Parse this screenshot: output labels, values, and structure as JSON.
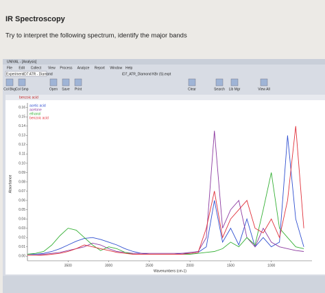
{
  "page": {
    "title": "IR Spectroscopy",
    "instruction": "Try to interpret the following spectrum, identify the major bands"
  },
  "window": {
    "title": "UNIVAL - [Analysis]",
    "menu": [
      "File",
      "Edit",
      "Collect",
      "View",
      "Process",
      "Analyze",
      "Report",
      "Window",
      "Help"
    ],
    "experiment_label": "Experiment",
    "experiment": "iD7 ATR - Diamond",
    "document_title": "iD7_ATR_Diamond KBr (S).expt",
    "toolbar": [
      "Col Bkg",
      "Col Smp",
      "Open",
      "Save",
      "Print",
      "Clear",
      "Search",
      "Lib Mgr",
      "View All"
    ],
    "selected_spectrum": "benzoic acid"
  },
  "chart_data": {
    "type": "line",
    "xlabel": "Wavenumbers (cm-1)",
    "ylabel": "Absorbance",
    "x": [
      4000,
      3900,
      3800,
      3700,
      3600,
      3500,
      3400,
      3300,
      3200,
      3100,
      3000,
      2900,
      2800,
      2700,
      2600,
      2500,
      2400,
      2300,
      2200,
      2100,
      2000,
      1900,
      1800,
      1700,
      1600,
      1500,
      1400,
      1300,
      1200,
      1100,
      1000,
      900,
      800,
      700,
      600
    ],
    "xlim": [
      4000,
      500
    ],
    "xticks": [
      3500,
      3000,
      2500,
      2000,
      1500,
      1000
    ],
    "ylim": [
      -0.005,
      0.165
    ],
    "yticks": [
      {
        "value": 0,
        "label": "0.00"
      },
      0.01,
      0.02,
      0.03,
      0.04,
      0.05,
      0.06,
      0.07,
      0.08,
      0.09,
      {
        "value": 0.1,
        "label": "0.10"
      },
      0.11,
      0.12,
      0.13,
      0.14,
      0.15,
      0.16
    ],
    "series": [
      {
        "name": "acetic acid",
        "color": "#2f4fd0",
        "values": [
          0.002,
          0.002,
          0.003,
          0.005,
          0.008,
          0.012,
          0.016,
          0.019,
          0.02,
          0.018,
          0.015,
          0.012,
          0.008,
          0.005,
          0.003,
          0.002,
          0.002,
          0.002,
          0.002,
          0.003,
          0.003,
          0.004,
          0.01,
          0.06,
          0.015,
          0.03,
          0.012,
          0.04,
          0.01,
          0.02,
          0.01,
          0.015,
          0.13,
          0.04,
          0.01
        ]
      },
      {
        "name": "acetone",
        "color": "#8c3aa0",
        "values": [
          0.001,
          0.001,
          0.002,
          0.003,
          0.004,
          0.006,
          0.008,
          0.01,
          0.014,
          0.012,
          0.008,
          0.005,
          0.004,
          0.003,
          0.003,
          0.003,
          0.003,
          0.003,
          0.003,
          0.003,
          0.004,
          0.005,
          0.02,
          0.135,
          0.03,
          0.05,
          0.06,
          0.02,
          0.01,
          0.03,
          0.015,
          0.01,
          0.008,
          0.006,
          0.005
        ]
      },
      {
        "name": "ethanol",
        "color": "#35b035",
        "values": [
          0.002,
          0.003,
          0.005,
          0.012,
          0.022,
          0.03,
          0.028,
          0.02,
          0.012,
          0.006,
          0.01,
          0.008,
          0.004,
          0.002,
          0.002,
          0.002,
          0.002,
          0.002,
          0.002,
          0.002,
          0.002,
          0.003,
          0.004,
          0.005,
          0.008,
          0.015,
          0.01,
          0.02,
          0.012,
          0.05,
          0.09,
          0.03,
          0.02,
          0.01,
          0.008
        ]
      },
      {
        "name": "benzoic acid",
        "color": "#e0303a",
        "values": [
          0.001,
          0.001,
          0.001,
          0.002,
          0.003,
          0.005,
          0.008,
          0.012,
          0.01,
          0.008,
          0.006,
          0.004,
          0.003,
          0.002,
          0.002,
          0.002,
          0.002,
          0.002,
          0.002,
          0.002,
          0.003,
          0.004,
          0.03,
          0.07,
          0.02,
          0.04,
          0.05,
          0.06,
          0.03,
          0.025,
          0.04,
          0.02,
          0.06,
          0.14,
          0.03
        ]
      }
    ]
  }
}
